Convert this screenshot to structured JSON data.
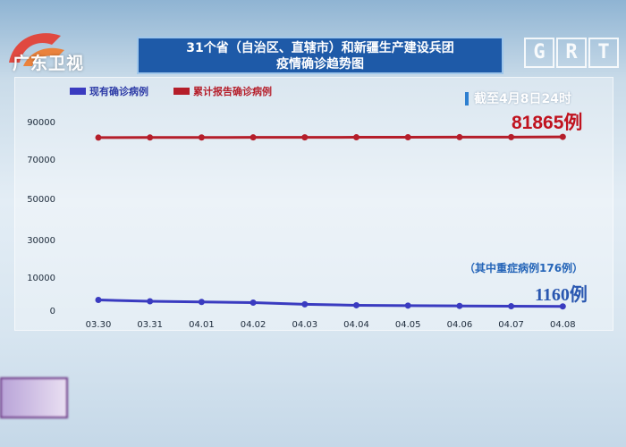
{
  "channel": {
    "logo_text": "广东卫视",
    "mark_letters": [
      "G",
      "R",
      "T"
    ]
  },
  "header": {
    "title_line1": "31个省（自治区、直辖市）和新疆生产建设兵团",
    "title_line2": "疫情确诊趋势图"
  },
  "annotations": {
    "as_of": "截至4月8日24时",
    "total_callout": "81865例",
    "severe_note": "（其中重症病例176例）",
    "current_callout": "1160例"
  },
  "colors": {
    "current_series": "#3a3bc0",
    "total_series": "#b51e2a",
    "title_bg": "#1e5aa8"
  },
  "chart_data": {
    "type": "line",
    "title": "",
    "xlabel": "",
    "ylabel": "",
    "x": [
      "03.30",
      "03.31",
      "04.01",
      "04.02",
      "04.03",
      "04.04",
      "04.05",
      "04.06",
      "04.07",
      "04.08"
    ],
    "series": [
      {
        "name": "现有确诊病例",
        "values": [
          3100,
          2700,
          2500,
          2300,
          1800,
          1500,
          1400,
          1300,
          1200,
          1160
        ]
      },
      {
        "name": "累计报告确诊病例",
        "values": [
          81470,
          81518,
          81554,
          81589,
          81620,
          81639,
          81669,
          81708,
          81740,
          81865
        ]
      }
    ],
    "y_ticks": [
      0,
      10000,
      30000,
      50000,
      70000,
      90000
    ],
    "legend_position": "top-left",
    "grid": false
  }
}
